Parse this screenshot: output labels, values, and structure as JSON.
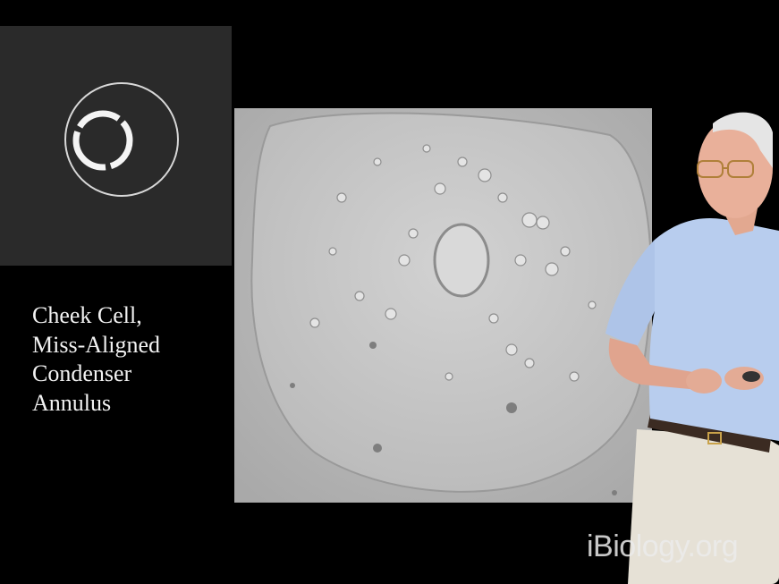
{
  "slide": {
    "caption_lines": [
      "Cheek Cell,",
      "Miss-Aligned",
      "Condenser",
      "Annulus"
    ],
    "watermark": "iBiology.org"
  },
  "colors": {
    "background": "#000000",
    "annulus_panel": "#2a2a2a",
    "caption_text": "#f2f2f2",
    "micrograph_base": "#b9b9b9",
    "shirt": "#b8cdee",
    "trousers": "#e6e1d6"
  }
}
